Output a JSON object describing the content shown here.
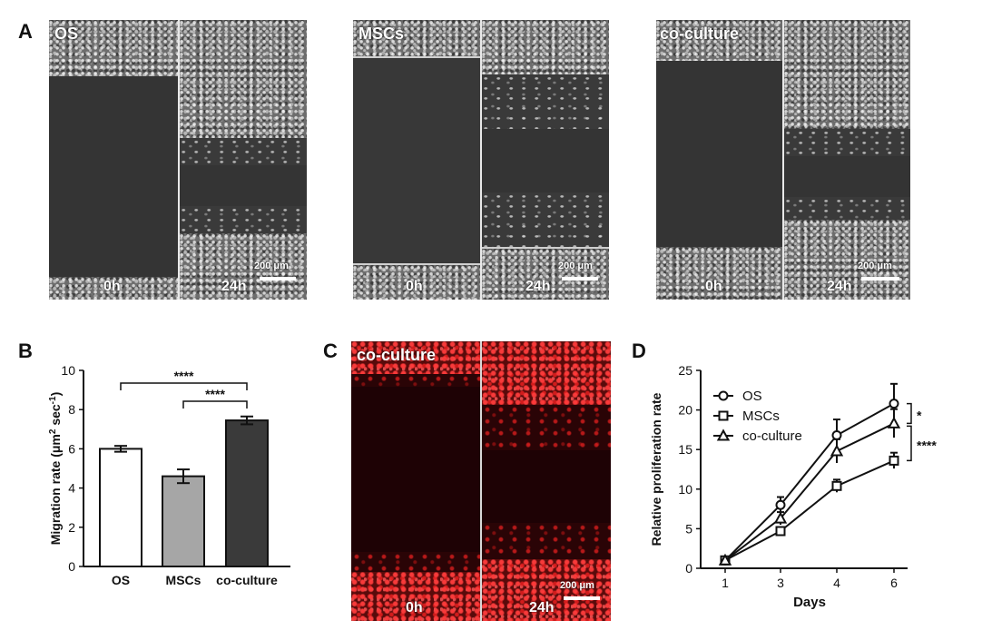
{
  "panel_a": {
    "letter": "A",
    "panels": [
      {
        "label": "OS",
        "time_left": "0h",
        "time_right": "24h",
        "scale": "200 μm"
      },
      {
        "label": "MSCs",
        "time_left": "0h",
        "time_right": "24h",
        "scale": "200 μm"
      },
      {
        "label": "co-culture",
        "time_left": "0h",
        "time_right": "24h",
        "scale": "200 μm"
      }
    ]
  },
  "panel_c": {
    "letter": "C",
    "label": "co-culture",
    "time_left": "0h",
    "time_right": "24h",
    "scale": "200 μm"
  },
  "chart_data": [
    {
      "panel": "B",
      "type": "bar",
      "ylabel_main": "Migration rate (μm",
      "ylabel_sup1": "2",
      "ylabel_mid": " sec",
      "ylabel_sup2": "-1",
      "ylabel_end": ")",
      "ylim": [
        0,
        10
      ],
      "yticks": [
        "0",
        "2",
        "4",
        "6",
        "8",
        "10"
      ],
      "categories": [
        "OS",
        "MSCs",
        "co-culture"
      ],
      "values": [
        6.0,
        4.6,
        7.45
      ],
      "errors": [
        0.15,
        0.35,
        0.2
      ],
      "colors": [
        "#ffffff",
        "#a6a6a6",
        "#3a3a3a"
      ],
      "significance": [
        {
          "from": 0,
          "to": 2,
          "label": "****"
        },
        {
          "from": 1,
          "to": 2,
          "label": "****"
        }
      ]
    },
    {
      "panel": "D",
      "type": "line",
      "xlabel": "Days",
      "ylabel": "Relative proliferation rate",
      "x": [
        1,
        3,
        4,
        6
      ],
      "xticks": [
        "1",
        "3",
        "4",
        "6"
      ],
      "ylim": [
        0,
        25
      ],
      "yticks": [
        "0",
        "5",
        "10",
        "15",
        "20",
        "25"
      ],
      "legend_position": "top-left",
      "series": [
        {
          "name": "OS",
          "marker": "circle",
          "values": [
            1.0,
            8.0,
            16.8,
            20.8
          ],
          "errors": [
            0.1,
            1.0,
            2.0,
            2.5
          ]
        },
        {
          "name": "MSCs",
          "marker": "square",
          "values": [
            1.0,
            4.7,
            10.4,
            13.6
          ],
          "errors": [
            0.1,
            0.4,
            0.8,
            1.0
          ]
        },
        {
          "name": "co-culture",
          "marker": "triangle",
          "values": [
            1.0,
            6.3,
            14.8,
            18.3
          ],
          "errors": [
            0.1,
            0.8,
            1.5,
            1.8
          ]
        }
      ],
      "significance": [
        {
          "label": "*",
          "between": [
            0,
            2
          ]
        },
        {
          "label": "****",
          "between": [
            2,
            1
          ]
        }
      ]
    }
  ]
}
